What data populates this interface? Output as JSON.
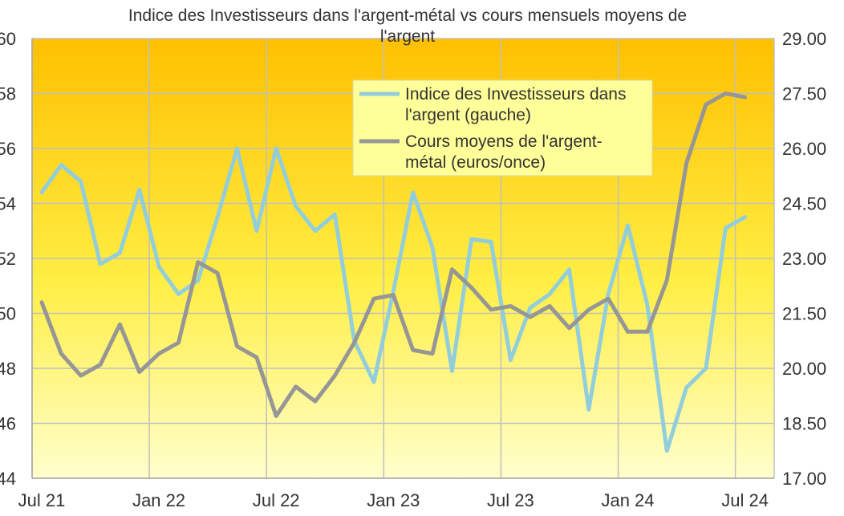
{
  "chart_data": {
    "type": "line",
    "title": [
      "Indice des Investisseurs dans l'argent-métal vs cours mensuels moyens de",
      "l'argent"
    ],
    "x_tick_labels": [
      "Jul 21",
      "Jan 22",
      "Jul 22",
      "Jan 23",
      "Jul 23",
      "Jan 24",
      "Jul 24"
    ],
    "y_left": {
      "ylim": [
        44,
        60
      ],
      "ticks": [
        "44",
        "46",
        "48",
        "50",
        "52",
        "54",
        "56",
        "58",
        "60"
      ]
    },
    "y_right": {
      "ylim": [
        17.0,
        29.0
      ],
      "ticks": [
        "17.00",
        "18.50",
        "20.00",
        "21.50",
        "23.00",
        "24.50",
        "26.00",
        "27.50",
        "29.00"
      ]
    },
    "grid": true,
    "legend_position": "top-right",
    "colors": {
      "index": "#92cddc",
      "price": "#969696",
      "grid": "#bfbfbf",
      "bg_top": "#ffc000",
      "bg_bottom": "#ffffcc"
    },
    "series": [
      {
        "name": [
          "Indice des Investisseurs dans",
          "l'argent (gauche)"
        ],
        "axis": "left",
        "values": [
          54.4,
          55.4,
          54.8,
          51.8,
          52.2,
          54.5,
          51.7,
          50.7,
          51.2,
          53.5,
          56.0,
          53.0,
          56.0,
          53.9,
          53.0,
          53.6,
          49.0,
          47.5,
          50.8,
          54.4,
          52.4,
          47.9,
          52.7,
          52.6,
          48.3,
          50.2,
          50.7,
          51.6,
          46.5,
          50.7,
          53.2,
          50.3,
          45.0,
          47.3,
          48.0,
          53.1,
          53.5
        ]
      },
      {
        "name": [
          "Cours moyens de l'argent-",
          "métal (euros/once)"
        ],
        "axis": "right",
        "values": [
          21.8,
          20.4,
          19.8,
          20.1,
          21.2,
          19.9,
          20.4,
          20.7,
          22.9,
          22.6,
          20.6,
          20.3,
          18.7,
          19.5,
          19.1,
          19.8,
          20.7,
          21.9,
          22.0,
          20.5,
          20.4,
          22.7,
          22.2,
          21.6,
          21.7,
          21.4,
          21.7,
          21.1,
          21.6,
          21.9,
          21.0,
          21.0,
          22.4,
          25.6,
          27.2,
          27.5,
          27.4
        ]
      }
    ]
  }
}
